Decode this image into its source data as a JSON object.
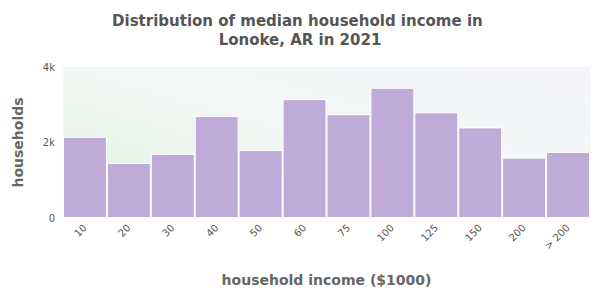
{
  "chart_data": {
    "type": "bar",
    "title": "Distribution of median household income in Lonoke, AR in 2021",
    "x_label": "household income ($1000)",
    "y_label": "households",
    "categories": [
      "10",
      "20",
      "30",
      "40",
      "50",
      "60",
      "75",
      "100",
      "125",
      "150",
      "200",
      "> 200"
    ],
    "values": [
      2150,
      1460,
      1700,
      2700,
      1800,
      3150,
      2750,
      3450,
      2800,
      2400,
      1600,
      1750
    ],
    "color": "#bfaad8",
    "ylim": [
      0,
      4000
    ],
    "yticks": [
      0,
      {
        "value": 2000,
        "label": "2k"
      },
      {
        "value": 4000,
        "label": "4k"
      }
    ],
    "grid": false
  }
}
